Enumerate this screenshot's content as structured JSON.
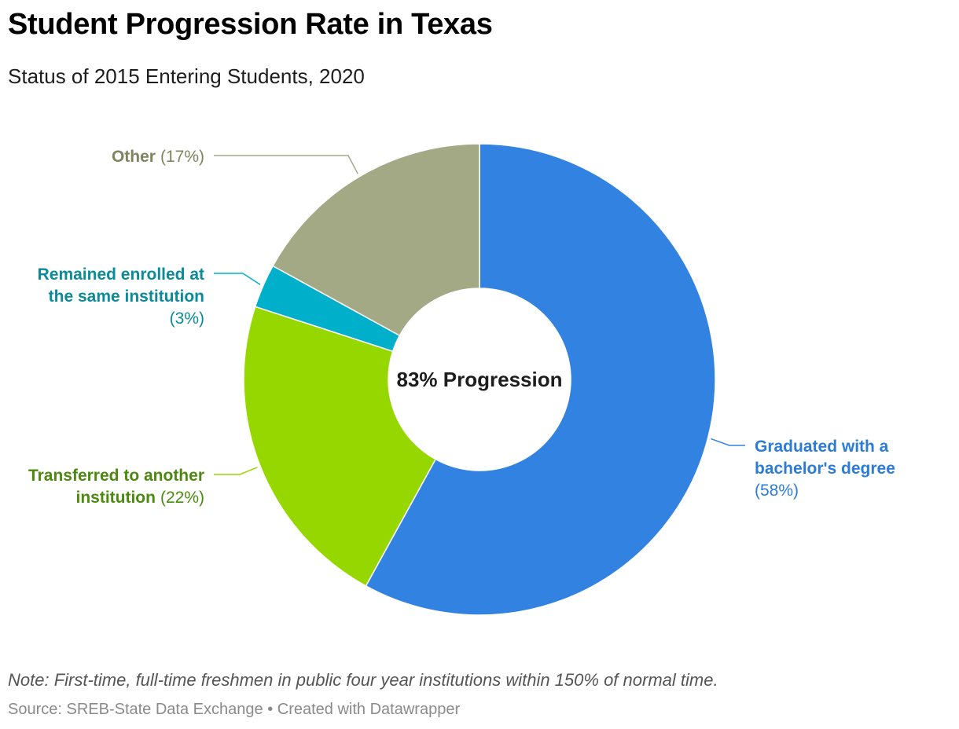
{
  "title": "Student Progression Rate in Texas",
  "subtitle": "Status of 2015 Entering Students, 2020",
  "note": "Note: First-time, full-time freshmen in public four year institutions within 150% of normal time.",
  "footer": {
    "source": "Source: SREB-State Data Exchange",
    "separator": "•",
    "credit": "Created with Datawrapper"
  },
  "chart_data": {
    "type": "pie",
    "donut": true,
    "center_label": "83% Progression",
    "categories": [
      "Graduated with a bachelor's degree",
      "Transferred to another institution",
      "Remained enrolled at the same institution",
      "Other"
    ],
    "values": [
      58,
      22,
      3,
      17
    ],
    "unit": "%",
    "colors": [
      "#3282e2",
      "#97d700",
      "#00b0cb",
      "#a3a885"
    ],
    "label_colors": [
      "#2b7cd8",
      "#4b8a0e",
      "#0b8a9a",
      "#7f845f"
    ],
    "labels": [
      {
        "lines": [
          "Graduated with a",
          "bachelor's degree"
        ],
        "percent": "(58%)"
      },
      {
        "lines": [
          "Transferred to another",
          "institution"
        ],
        "percent": "(22%)"
      },
      {
        "lines": [
          "Remained enrolled at",
          "the same institution"
        ],
        "percent": "(3%)"
      },
      {
        "lines": [
          "Other"
        ],
        "percent": "(17%)"
      }
    ]
  }
}
